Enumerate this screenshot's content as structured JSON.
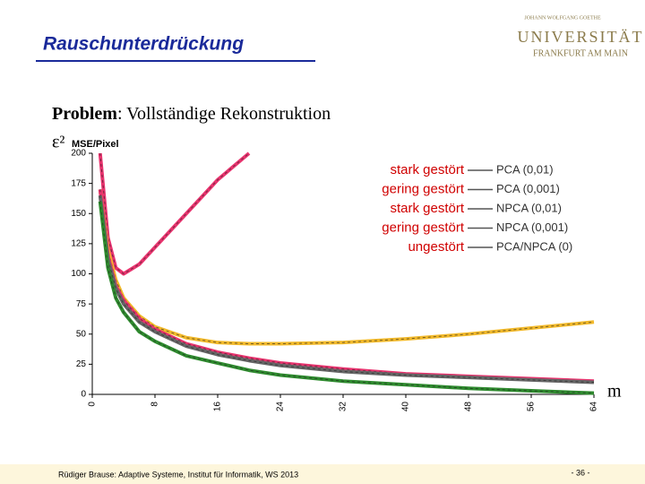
{
  "header": {
    "title": "Rauschunterdrückung",
    "logo_top": "JOHANN WOLFGANG GOETHE",
    "logo_main": "UNIVERSITÄT",
    "logo_sub": "FRANKFURT AM MAIN"
  },
  "problem": {
    "label": "Problem",
    "text": ": Vollständige Rekonstruktion"
  },
  "footer": {
    "author": "Rüdiger Brause: Adaptive Systeme, Institut für Informatik, WS 2013",
    "page": "- 36 -"
  },
  "chart_data": {
    "type": "line",
    "y_symbol": "ε²",
    "y_label": "MSE/Pixel",
    "x_label": "m",
    "x": [
      1,
      2,
      3,
      4,
      6,
      8,
      12,
      16,
      20,
      24,
      32,
      40,
      48,
      56,
      64
    ],
    "series": [
      {
        "name": "PCA (0,01)",
        "color": "#e8336e",
        "annotation": "stark gestört",
        "values": [
          200,
          130,
          105,
          100,
          108,
          122,
          150,
          178,
          200,
          null,
          null,
          null,
          null,
          null,
          null
        ]
      },
      {
        "name": "PCA (0,001)",
        "color": "#f2b92a",
        "annotation": "gering gestört",
        "values": [
          170,
          120,
          95,
          80,
          65,
          56,
          47,
          43,
          42,
          42,
          43,
          46,
          50,
          55,
          60
        ]
      },
      {
        "name": "NPCA (0,01)",
        "color": "#e8336e",
        "annotation": "stark gestört",
        "values": [
          170,
          115,
          90,
          78,
          63,
          54,
          42,
          35,
          30,
          26,
          21,
          17,
          15,
          13,
          11
        ]
      },
      {
        "name": "NPCA (0,001)",
        "color": "#666666",
        "annotation": "gering gestört",
        "values": [
          165,
          112,
          88,
          75,
          60,
          52,
          40,
          33,
          28,
          24,
          19,
          16,
          14,
          12,
          10
        ]
      },
      {
        "name": "PCA/NPCA (0)",
        "color": "#2e8b2e",
        "annotation": "ungestört",
        "values": [
          160,
          105,
          80,
          68,
          52,
          44,
          32,
          26,
          20,
          16,
          11,
          8,
          5,
          3,
          1
        ]
      }
    ],
    "xlim": [
      0,
      64
    ],
    "xticks": [
      0,
      8,
      16,
      24,
      32,
      40,
      48,
      56,
      64
    ],
    "ylim": [
      0,
      200
    ],
    "yticks": [
      0,
      25,
      50,
      75,
      100,
      125,
      150,
      175,
      200
    ]
  }
}
